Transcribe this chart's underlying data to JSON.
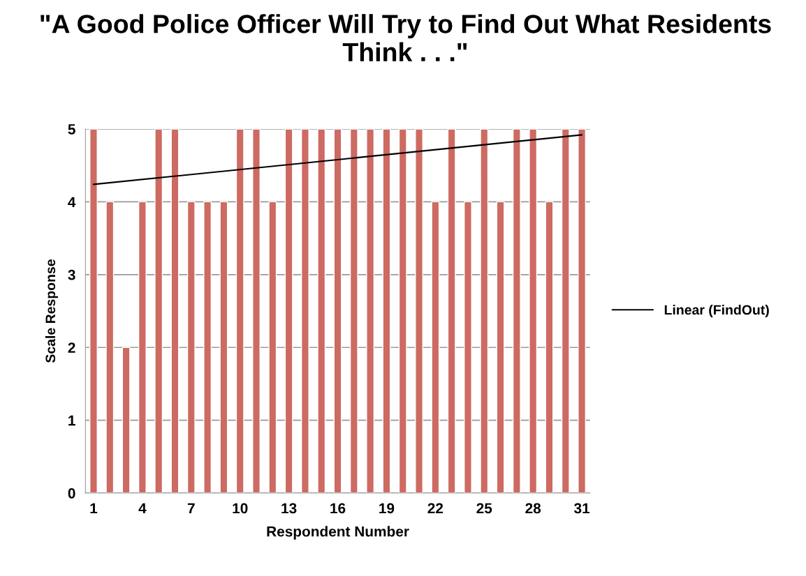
{
  "chart_data": {
    "type": "bar",
    "title": "\"A Good Police Officer Will Try to Find Out What Residents Think . . .\"",
    "xlabel": "Respondent Number",
    "ylabel": "Scale Response",
    "x": [
      1,
      2,
      3,
      4,
      5,
      6,
      7,
      8,
      9,
      10,
      11,
      12,
      13,
      14,
      15,
      16,
      17,
      18,
      19,
      20,
      21,
      22,
      23,
      24,
      25,
      26,
      27,
      28,
      29,
      30,
      31
    ],
    "series": [
      {
        "color": "#cd6a62",
        "values": [
          5,
          4,
          2,
          4,
          5,
          5,
          4,
          4,
          4,
          5,
          5,
          4,
          5,
          5,
          5,
          5,
          5,
          5,
          5,
          5,
          5,
          4,
          5,
          4,
          5,
          4,
          5,
          5,
          4,
          5,
          5
        ]
      },
      {
        "type": "line",
        "name": "Linear (FindOut)",
        "color": "#000000",
        "x": [
          1,
          31
        ],
        "values": [
          4.24,
          4.92
        ]
      }
    ],
    "xlim": [
      0.5,
      31.5
    ],
    "xticks": [
      1,
      4,
      7,
      10,
      13,
      16,
      19,
      22,
      25,
      28,
      31
    ],
    "ylim": [
      0,
      5
    ],
    "yticks": [
      0,
      1,
      2,
      3,
      4,
      5
    ],
    "grid": "y",
    "legend": "right"
  }
}
